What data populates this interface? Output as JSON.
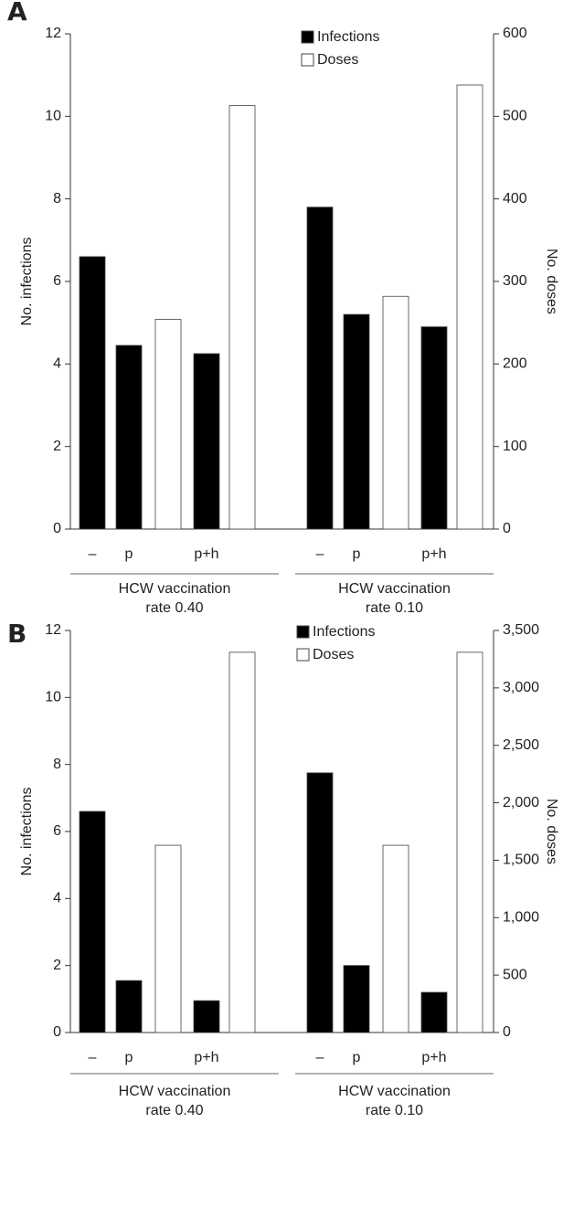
{
  "chart_data": [
    {
      "type": "bar",
      "panel_label": "A",
      "categories": [
        "–",
        "p",
        "p+h",
        "–",
        "p",
        "p+h"
      ],
      "group_labels": [
        [
          "HCW vaccination",
          "rate 0.40"
        ],
        [
          "HCW vaccination",
          "rate 0.10"
        ]
      ],
      "y_label": "No. infections",
      "y2_label": "No. doses",
      "ylim": [
        0,
        12
      ],
      "yticks": [
        0,
        2,
        4,
        6,
        8,
        10,
        12
      ],
      "y2lim": [
        0,
        600
      ],
      "y2ticks": [
        0,
        100,
        200,
        300,
        400,
        500,
        600
      ],
      "series": [
        {
          "name": "Infections",
          "color": "#000000",
          "values": [
            6.6,
            4.45,
            4.25,
            7.8,
            5.2,
            4.9
          ]
        },
        {
          "name": "Doses",
          "color": "#ffffff",
          "axis": "y2",
          "values": [
            null,
            254,
            513,
            null,
            282,
            538
          ]
        }
      ]
    },
    {
      "type": "bar",
      "panel_label": "B",
      "categories": [
        "–",
        "p",
        "p+h",
        "–",
        "p",
        "p+h"
      ],
      "group_labels": [
        [
          "HCW vaccination",
          "rate 0.40"
        ],
        [
          "HCW vaccination",
          "rate 0.10"
        ]
      ],
      "y_label": "No. infections",
      "y2_label": "No. doses",
      "ylim": [
        0,
        12
      ],
      "yticks": [
        0,
        2,
        4,
        6,
        8,
        10,
        12
      ],
      "y2lim": [
        0,
        3500
      ],
      "y2ticks": [
        0,
        500,
        {
          "value": 1000,
          "label": "1,000"
        },
        {
          "value": 1500,
          "label": "1,500"
        },
        {
          "value": 2000,
          "label": "2,000"
        },
        {
          "value": 2500,
          "label": "2,500"
        },
        {
          "value": 3000,
          "label": "3,000"
        },
        {
          "value": 3500,
          "label": "3,500"
        }
      ],
      "series": [
        {
          "name": "Infections",
          "color": "#000000",
          "values": [
            6.6,
            1.55,
            0.95,
            7.75,
            2.0,
            1.2
          ]
        },
        {
          "name": "Doses",
          "color": "#ffffff",
          "axis": "y2",
          "values": [
            null,
            1630,
            3310,
            null,
            1630,
            3310
          ]
        }
      ]
    }
  ]
}
